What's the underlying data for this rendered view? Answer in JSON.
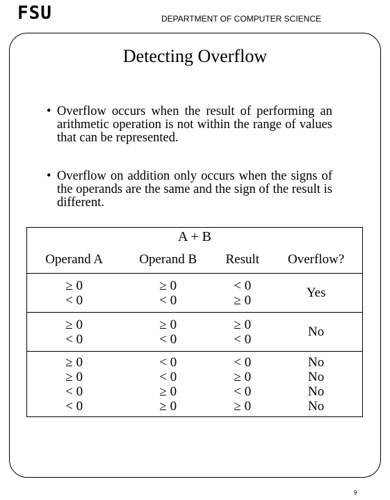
{
  "header": {
    "logo": "FSU",
    "department": "DEPARTMENT OF COMPUTER SCIENCE"
  },
  "slide": {
    "title": "Detecting Overflow",
    "bullets": [
      "Overflow occurs when the result of performing an arithmetic operation is not within the range of values that can be represented.",
      "Overflow on addition only occurs when the signs of the operands are the same and the sign of the result is different."
    ],
    "bullet_symbol": "•"
  },
  "table": {
    "caption": "A + B",
    "headers": [
      "Operand A",
      "Operand B",
      "Result",
      "Overflow?"
    ],
    "groups": [
      {
        "operand_a": [
          "≥ 0",
          "< 0"
        ],
        "operand_b": [
          "≥ 0",
          "< 0"
        ],
        "result": [
          "< 0",
          "≥ 0"
        ],
        "overflow": [
          "Yes"
        ]
      },
      {
        "operand_a": [
          "≥ 0",
          "< 0"
        ],
        "operand_b": [
          "≥ 0",
          "< 0"
        ],
        "result": [
          "≥ 0",
          "< 0"
        ],
        "overflow": [
          "No"
        ]
      },
      {
        "operand_a": [
          "≥ 0",
          "≥ 0",
          "< 0",
          "< 0"
        ],
        "operand_b": [
          "< 0",
          "< 0",
          "≥ 0",
          "≥ 0"
        ],
        "result": [
          "< 0",
          "≥ 0",
          "< 0",
          "≥ 0"
        ],
        "overflow": [
          "No",
          "No",
          "No",
          "No"
        ]
      }
    ]
  },
  "footer": {
    "page_number": "9"
  }
}
